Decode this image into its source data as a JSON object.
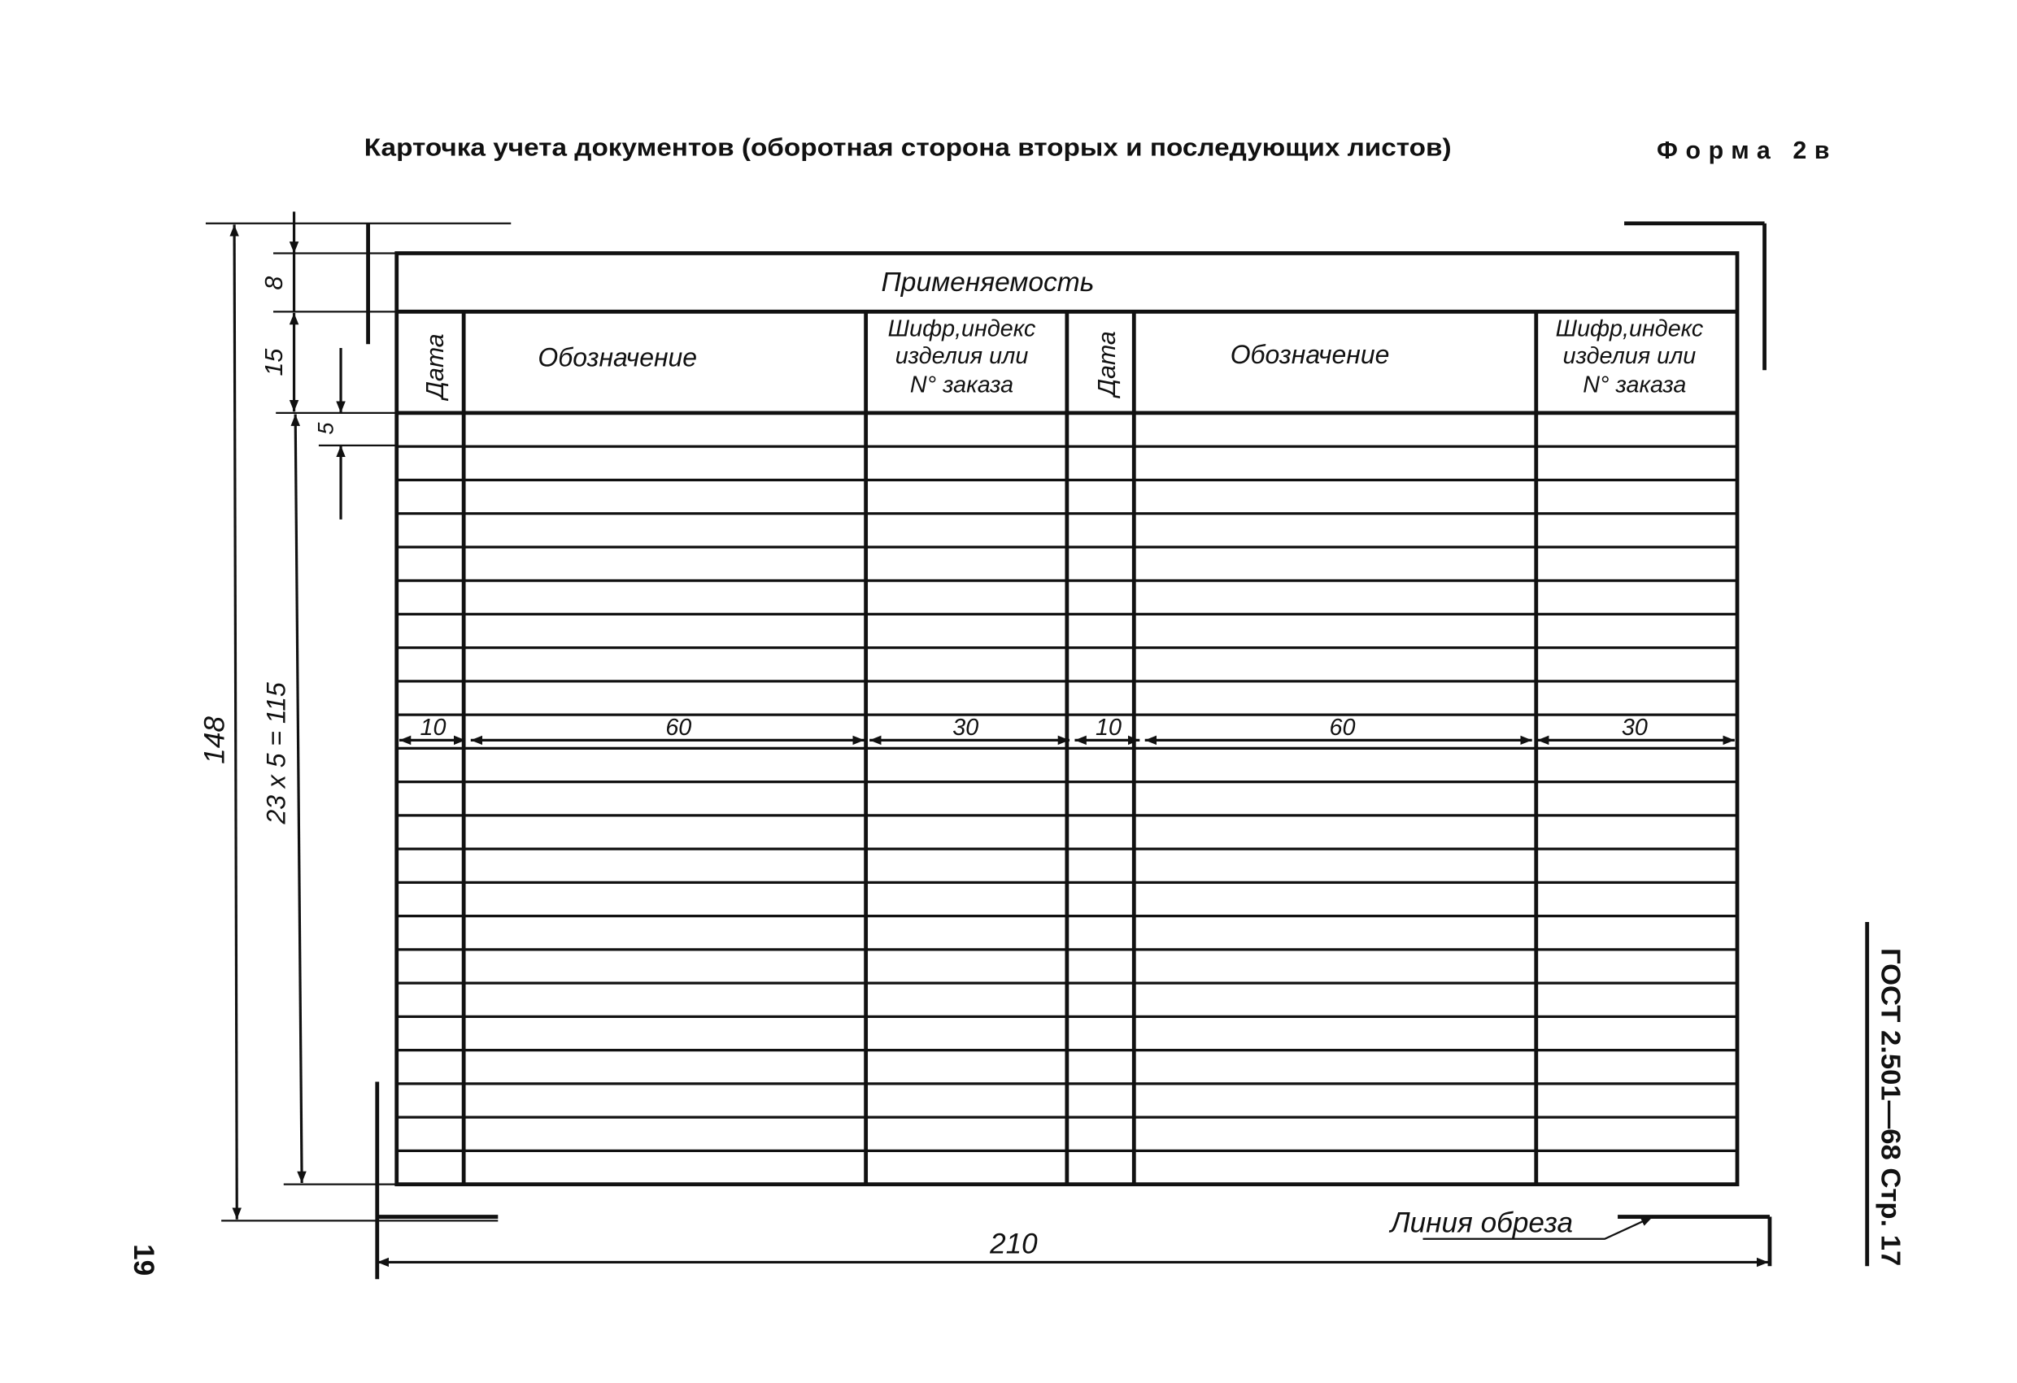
{
  "title": "Карточка учета документов (оборотная сторона вторых и последующих листов)",
  "form_label": "Форма 2в",
  "table": {
    "group_header": "Применяемость",
    "columns": [
      {
        "label": "Дата",
        "width_mm": "10"
      },
      {
        "label": "Обозначение",
        "width_mm": "60"
      },
      {
        "label_lines": [
          "Шифр,индекс",
          "изделия или",
          "N° заказа"
        ],
        "width_mm": "30"
      },
      {
        "label": "Дата",
        "width_mm": "10"
      },
      {
        "label": "Обозначение",
        "width_mm": "60"
      },
      {
        "label_lines": [
          "Шифр,индекс",
          "изделия или",
          "N° заказа"
        ],
        "width_mm": "30"
      }
    ],
    "row_count": 23
  },
  "dimensions": {
    "total_height": "148",
    "header_row1": "8",
    "header_row2": "15",
    "row_height": "5",
    "rows_total": "23 x 5 = 115",
    "total_width": "210"
  },
  "cut_line_label": "Линия обреза",
  "side_label": "ГОСТ 2.501—68 Стр. 17",
  "page_number": "19"
}
